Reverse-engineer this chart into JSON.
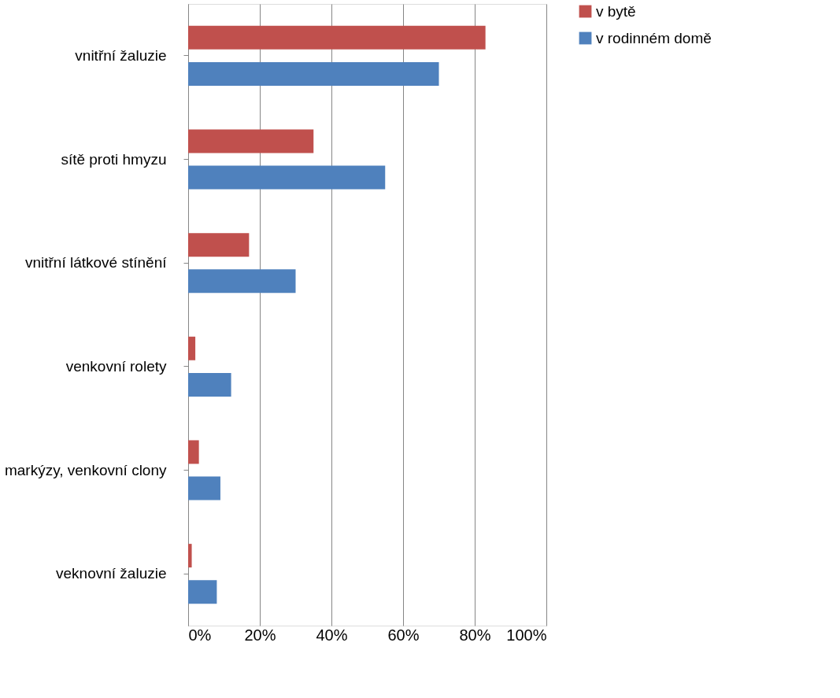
{
  "chart_data": {
    "type": "bar",
    "orientation": "horizontal",
    "categories": [
      "vnitřní žaluzie",
      "sítě proti hmyzu",
      "vnitřní látkové stínění",
      "venkovní rolety",
      "markýzy, venkovní clony",
      "veknovní žaluzie"
    ],
    "series": [
      {
        "name": "v bytě",
        "color": "#c0504d",
        "values": [
          83,
          35,
          17,
          2,
          3,
          1
        ]
      },
      {
        "name": "v rodinném domě",
        "color": "#4f81bd",
        "values": [
          70,
          55,
          30,
          12,
          9,
          8
        ]
      }
    ],
    "xlim": [
      0,
      100
    ],
    "xticks": [
      {
        "value": 0,
        "label": "0%"
      },
      {
        "value": 20,
        "label": "20%"
      },
      {
        "value": 40,
        "label": "40%"
      },
      {
        "value": 60,
        "label": "60%"
      },
      {
        "value": 80,
        "label": "80%"
      },
      {
        "value": 100,
        "label": "100%"
      }
    ],
    "grid": "x",
    "legend": "right"
  }
}
